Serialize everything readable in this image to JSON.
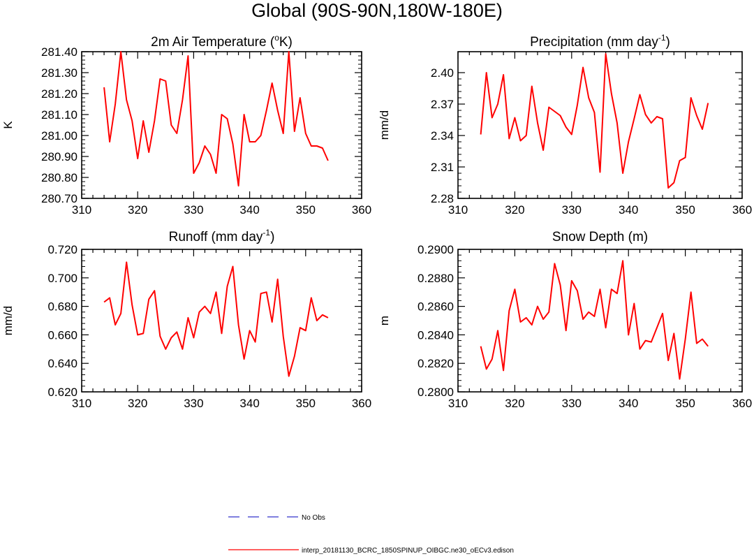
{
  "page_title": "Global (90S-90N,180W-180E)",
  "chart_data": [
    {
      "type": "line",
      "title_main": "2m Air Temperature (",
      "title_sup": "o",
      "title_tail": "K)",
      "ylabel": "K",
      "xlim": [
        310,
        360
      ],
      "ylim": [
        280.7,
        281.4
      ],
      "yticks": [
        "280.70",
        "280.80",
        "280.90",
        "281.00",
        "281.10",
        "281.20",
        "281.30",
        "281.40"
      ],
      "xticks": [
        "310",
        "320",
        "330",
        "340",
        "350",
        "360"
      ],
      "color": "#ff0000",
      "x": [
        314,
        315,
        316,
        317,
        318,
        319,
        320,
        321,
        322,
        323,
        324,
        325,
        326,
        327,
        328,
        329,
        330,
        331,
        332,
        333,
        334,
        335,
        336,
        337,
        338,
        339,
        340,
        341,
        342,
        343,
        344,
        345,
        346,
        347,
        348,
        349,
        350,
        351,
        352,
        353,
        354
      ],
      "y": [
        281.23,
        280.97,
        281.15,
        281.4,
        281.17,
        281.07,
        280.89,
        281.07,
        280.92,
        281.07,
        281.27,
        281.26,
        281.05,
        281.01,
        281.17,
        281.38,
        280.82,
        280.87,
        280.95,
        280.91,
        280.82,
        281.1,
        281.08,
        280.96,
        280.76,
        281.1,
        280.97,
        280.97,
        281.0,
        281.12,
        281.25,
        281.12,
        281.01,
        281.4,
        281.02,
        281.18,
        281.01,
        280.95,
        280.95,
        280.94,
        280.88
      ]
    },
    {
      "type": "line",
      "title_main": "Precipitation (mm day",
      "title_sup": "-1",
      "title_tail": ")",
      "ylabel": "mm/d",
      "xlim": [
        310,
        360
      ],
      "ylim": [
        2.28,
        2.42
      ],
      "yticks": [
        "2.28",
        "2.31",
        "2.34",
        "2.37",
        "2.40"
      ],
      "xticks": [
        "310",
        "320",
        "330",
        "340",
        "350",
        "360"
      ],
      "color": "#ff0000",
      "x": [
        314,
        315,
        316,
        317,
        318,
        319,
        320,
        321,
        322,
        323,
        324,
        325,
        326,
        327,
        328,
        329,
        330,
        331,
        332,
        333,
        334,
        335,
        336,
        337,
        338,
        339,
        340,
        341,
        342,
        343,
        344,
        345,
        346,
        347,
        348,
        349,
        350,
        351,
        352,
        353,
        354
      ],
      "y": [
        2.341,
        2.4,
        2.357,
        2.37,
        2.398,
        2.337,
        2.357,
        2.335,
        2.34,
        2.387,
        2.352,
        2.326,
        2.367,
        2.363,
        2.359,
        2.348,
        2.341,
        2.369,
        2.405,
        2.376,
        2.362,
        2.305,
        2.418,
        2.38,
        2.352,
        2.304,
        2.334,
        2.356,
        2.379,
        2.36,
        2.352,
        2.358,
        2.356,
        2.29,
        2.295,
        2.316,
        2.319,
        2.376,
        2.359,
        2.346,
        2.371
      ]
    },
    {
      "type": "line",
      "title_main": "Runoff (mm day",
      "title_sup": "-1",
      "title_tail": ")",
      "ylabel": "mm/d",
      "xlim": [
        310,
        360
      ],
      "ylim": [
        0.62,
        0.72
      ],
      "yticks": [
        "0.620",
        "0.640",
        "0.660",
        "0.680",
        "0.700",
        "0.720"
      ],
      "xticks": [
        "310",
        "320",
        "330",
        "340",
        "350",
        "360"
      ],
      "color": "#ff0000",
      "x": [
        314,
        315,
        316,
        317,
        318,
        319,
        320,
        321,
        322,
        323,
        324,
        325,
        326,
        327,
        328,
        329,
        330,
        331,
        332,
        333,
        334,
        335,
        336,
        337,
        338,
        339,
        340,
        341,
        342,
        343,
        344,
        345,
        346,
        347,
        348,
        349,
        350,
        351,
        352,
        353,
        354
      ],
      "y": [
        0.683,
        0.686,
        0.667,
        0.675,
        0.711,
        0.681,
        0.66,
        0.661,
        0.685,
        0.691,
        0.659,
        0.65,
        0.658,
        0.662,
        0.65,
        0.672,
        0.658,
        0.676,
        0.68,
        0.675,
        0.69,
        0.661,
        0.694,
        0.708,
        0.667,
        0.643,
        0.663,
        0.655,
        0.689,
        0.69,
        0.669,
        0.699,
        0.659,
        0.631,
        0.645,
        0.665,
        0.663,
        0.686,
        0.67,
        0.674,
        0.672
      ]
    },
    {
      "type": "line",
      "title_main": "Snow Depth (m)",
      "title_sup": "",
      "title_tail": "",
      "ylabel": "m",
      "xlim": [
        310,
        360
      ],
      "ylim": [
        0.28,
        0.29
      ],
      "yticks": [
        "0.2800",
        "0.2820",
        "0.2840",
        "0.2860",
        "0.2880",
        "0.2900"
      ],
      "xticks": [
        "310",
        "320",
        "330",
        "340",
        "350",
        "360"
      ],
      "color": "#ff0000",
      "x": [
        314,
        315,
        316,
        317,
        318,
        319,
        320,
        321,
        322,
        323,
        324,
        325,
        326,
        327,
        328,
        329,
        330,
        331,
        332,
        333,
        334,
        335,
        336,
        337,
        338,
        339,
        340,
        341,
        342,
        343,
        344,
        345,
        346,
        347,
        348,
        349,
        350,
        351,
        352,
        353,
        354
      ],
      "y": [
        0.2832,
        0.2816,
        0.2823,
        0.2843,
        0.2815,
        0.2857,
        0.2872,
        0.2849,
        0.2852,
        0.2847,
        0.286,
        0.2851,
        0.2856,
        0.289,
        0.2875,
        0.2843,
        0.2878,
        0.2871,
        0.2851,
        0.2856,
        0.2853,
        0.2872,
        0.2845,
        0.2872,
        0.2869,
        0.2892,
        0.284,
        0.2862,
        0.283,
        0.2836,
        0.2835,
        0.2845,
        0.2855,
        0.2822,
        0.2841,
        0.2809,
        0.2837,
        0.287,
        0.2834,
        0.2837,
        0.2832
      ]
    }
  ],
  "legend": {
    "items": [
      {
        "label": "No Obs",
        "color": "#3333cc",
        "style": "dashed"
      },
      {
        "label": "interp_20181130_BCRC_1850SPINUP_OIBGC.ne30_oECv3.edison",
        "color": "#ff0000",
        "style": "solid"
      }
    ]
  }
}
